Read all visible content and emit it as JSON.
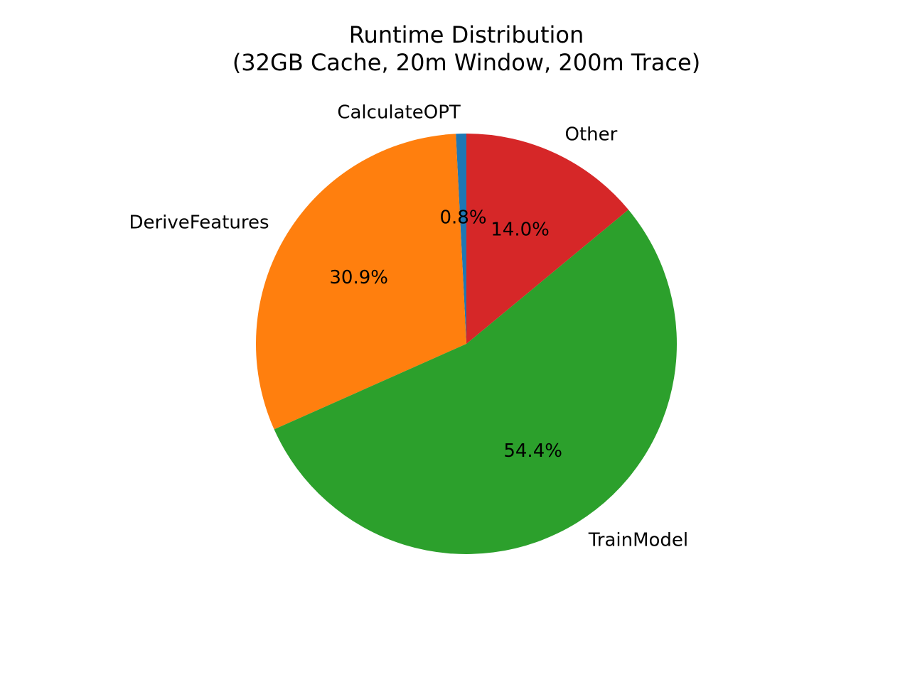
{
  "chart_data": {
    "type": "pie",
    "title": [
      "Runtime Distribution",
      "(32GB Cache, 20m Window, 200m Trace)"
    ],
    "start_angle_deg": 90,
    "direction": "counterclockwise",
    "slices": [
      {
        "label": "CalculateOPT",
        "value": 0.8,
        "pct_label": "0.8%",
        "color": "#1f77b4"
      },
      {
        "label": "DeriveFeatures",
        "value": 30.9,
        "pct_label": "30.9%",
        "color": "#ff7f0e"
      },
      {
        "label": "TrainModel",
        "value": 54.4,
        "pct_label": "54.4%",
        "color": "#2ca02c"
      },
      {
        "label": "Other",
        "value": 14.0,
        "pct_label": "14.0%",
        "color": "#d62728"
      }
    ]
  }
}
